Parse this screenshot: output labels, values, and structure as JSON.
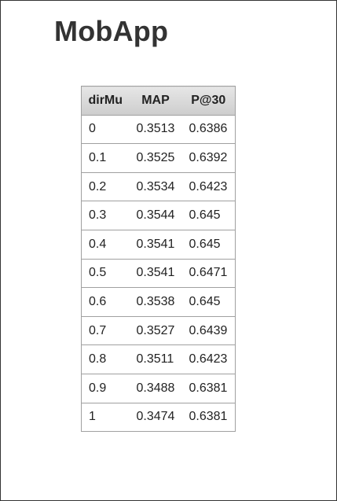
{
  "app": {
    "title": "MobApp"
  },
  "table": {
    "headers": [
      "dirMu",
      "MAP",
      "P@30"
    ],
    "rows": [
      [
        "0",
        "0.3513",
        "0.6386"
      ],
      [
        "0.1",
        "0.3525",
        "0.6392"
      ],
      [
        "0.2",
        "0.3534",
        "0.6423"
      ],
      [
        "0.3",
        "0.3544",
        "0.645"
      ],
      [
        "0.4",
        "0.3541",
        "0.645"
      ],
      [
        "0.5",
        "0.3541",
        "0.6471"
      ],
      [
        "0.6",
        "0.3538",
        "0.645"
      ],
      [
        "0.7",
        "0.3527",
        "0.6439"
      ],
      [
        "0.8",
        "0.3511",
        "0.6423"
      ],
      [
        "0.9",
        "0.3488",
        "0.6381"
      ],
      [
        "1",
        "0.3474",
        "0.6381"
      ]
    ]
  }
}
